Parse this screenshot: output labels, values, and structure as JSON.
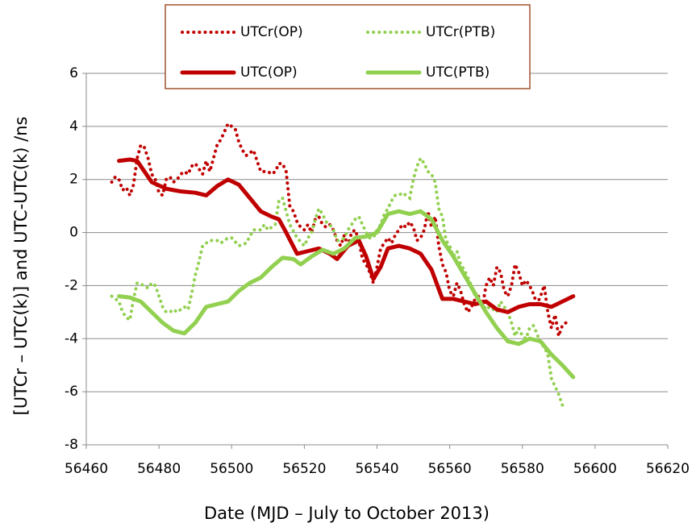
{
  "chart_data": {
    "type": "line",
    "x_label": "Date (MJD – July to October 2013)",
    "y_label": "[UTCr – UTC(k)] and UTC-UTC(k) /ns",
    "xlim": [
      56460,
      56620
    ],
    "xticks": [
      56460,
      56480,
      56500,
      56520,
      56540,
      56560,
      56580,
      56600,
      56620
    ],
    "ylim": [
      -8,
      6
    ],
    "yticks": [
      -8,
      -6,
      -4,
      -2,
      0,
      2,
      4,
      6
    ],
    "grid": true,
    "legend": "top",
    "series": [
      {
        "name": "UTCr(OP)",
        "color": "#c00000",
        "style": "dotted",
        "x": [
          56467,
          56468,
          56469,
          56470,
          56471,
          56472,
          56473,
          56474,
          56475,
          56476,
          56477,
          56478,
          56479,
          56480,
          56481,
          56482,
          56483,
          56484,
          56485,
          56486,
          56487,
          56488,
          56489,
          56490,
          56491,
          56492,
          56493,
          56494,
          56495,
          56496,
          56497,
          56498,
          56499,
          56500,
          56501,
          56502,
          56503,
          56504,
          56505,
          56506,
          56507,
          56508,
          56509,
          56510,
          56511,
          56512,
          56513,
          56514,
          56515,
          56516,
          56517,
          56518,
          56519,
          56520,
          56521,
          56522,
          56523,
          56524,
          56525,
          56526,
          56527,
          56528,
          56529,
          56530,
          56531,
          56532,
          56533,
          56534,
          56535,
          56536,
          56537,
          56538,
          56539,
          56540,
          56541,
          56542,
          56543,
          56544,
          56545,
          56546,
          56547,
          56548,
          56549,
          56550,
          56551,
          56552,
          56553,
          56554,
          56555,
          56556,
          56557,
          56558,
          56559,
          56560,
          56561,
          56562,
          56563,
          56564,
          56565,
          56566,
          56567,
          56568,
          56569,
          56570,
          56571,
          56572,
          56573,
          56574,
          56575,
          56576,
          56577,
          56578,
          56579,
          56580,
          56581,
          56582,
          56583,
          56584,
          56585,
          56586,
          56587,
          56588,
          56589,
          56590,
          56591,
          56592
        ],
        "values": [
          1.9,
          2.1,
          2.0,
          1.6,
          1.7,
          1.4,
          1.8,
          2.8,
          3.3,
          3.2,
          2.8,
          2.2,
          2.0,
          1.5,
          1.4,
          2.0,
          2.1,
          1.9,
          2.0,
          2.2,
          2.3,
          2.2,
          2.5,
          2.6,
          2.4,
          2.2,
          2.7,
          2.3,
          2.8,
          3.3,
          3.5,
          3.8,
          4.1,
          4.0,
          3.9,
          3.4,
          3.1,
          2.9,
          3.0,
          3.1,
          2.7,
          2.3,
          2.3,
          2.3,
          2.2,
          2.3,
          2.6,
          2.6,
          2.3,
          1.0,
          0.8,
          0.4,
          0.2,
          0.1,
          0.3,
          0.0,
          0.5,
          0.6,
          0.3,
          0.2,
          0.3,
          0.1,
          -0.3,
          -0.5,
          -0.1,
          -0.5,
          0.0,
          0.1,
          -0.3,
          -1.0,
          -1.2,
          -1.5,
          -1.9,
          -1.3,
          -0.6,
          -0.4,
          -0.2,
          -0.4,
          -0.1,
          0.1,
          0.3,
          0.2,
          0.4,
          0.2,
          -0.3,
          -0.2,
          0.1,
          0.8,
          0.2,
          0.6,
          -0.5,
          -1.2,
          -1.5,
          -2.2,
          -2.4,
          -1.9,
          -2.2,
          -2.7,
          -3.0,
          -2.8,
          -2.5,
          -2.4,
          -2.8,
          -2.0,
          -1.7,
          -2.0,
          -1.3,
          -1.5,
          -2.2,
          -2.4,
          -2.0,
          -1.2,
          -1.5,
          -2.0,
          -1.8,
          -2.0,
          -2.3,
          -2.7,
          -2.4,
          -2.0,
          -3.0,
          -3.6,
          -3.1,
          -3.9,
          -3.5,
          -3.4
        ]
      },
      {
        "name": "UTCr(PTB)",
        "color": "#92d050",
        "style": "dotted",
        "x": [
          56467,
          56469,
          56470,
          56471,
          56472,
          56473,
          56474,
          56476,
          56477,
          56478,
          56479,
          56480,
          56481,
          56482,
          56483,
          56484,
          56485,
          56486,
          56487,
          56488,
          56489,
          56490,
          56491,
          56492,
          56494,
          56496,
          56497,
          56498,
          56499,
          56500,
          56502,
          56504,
          56506,
          56508,
          56509,
          56510,
          56512,
          56513,
          56514,
          56515,
          56516,
          56518,
          56520,
          56521,
          56522,
          56523,
          56524,
          56525,
          56526,
          56527,
          56528,
          56529,
          56530,
          56531,
          56532,
          56533,
          56534,
          56535,
          56536,
          56537,
          56538,
          56539,
          56540,
          56541,
          56542,
          56543,
          56544,
          56545,
          56546,
          56547,
          56548,
          56549,
          56550,
          56551,
          56552,
          56553,
          56554,
          56555,
          56556,
          56557,
          56558,
          56559,
          56560,
          56561,
          56562,
          56563,
          56564,
          56565,
          56566,
          56567,
          56568,
          56569,
          56570,
          56571,
          56572,
          56573,
          56574,
          56575,
          56576,
          56577,
          56578,
          56579,
          56580,
          56581,
          56582,
          56583,
          56584,
          56585,
          56586,
          56587,
          56588,
          56589,
          56590,
          56591
        ],
        "values": [
          -2.4,
          -2.6,
          -3.0,
          -3.2,
          -3.3,
          -2.5,
          -1.9,
          -2.0,
          -2.1,
          -1.9,
          -2.0,
          -2.4,
          -2.8,
          -3.0,
          -3.0,
          -2.9,
          -3.0,
          -2.9,
          -2.8,
          -2.9,
          -2.3,
          -1.6,
          -1.1,
          -0.5,
          -0.3,
          -0.3,
          -0.4,
          -0.3,
          -0.2,
          -0.2,
          -0.5,
          -0.4,
          0.1,
          0.1,
          0.3,
          0.1,
          0.3,
          1.2,
          1.3,
          0.8,
          0.3,
          -0.2,
          -0.5,
          -0.2,
          0.0,
          0.5,
          0.9,
          0.7,
          0.4,
          0.3,
          0.1,
          -0.3,
          -0.3,
          -0.2,
          0.1,
          0.3,
          0.5,
          0.6,
          0.3,
          0.0,
          -0.2,
          -0.2,
          0.1,
          0.3,
          0.7,
          0.9,
          1.2,
          1.4,
          1.4,
          1.5,
          1.4,
          1.3,
          2.0,
          2.5,
          2.8,
          2.6,
          2.3,
          2.2,
          1.9,
          0.9,
          0.6,
          -0.3,
          -0.5,
          -0.9,
          -0.7,
          -1.2,
          -1.4,
          -1.7,
          -2.0,
          -2.4,
          -2.5,
          -2.7,
          -2.9,
          -2.8,
          -2.9,
          -3.0,
          -2.6,
          -2.8,
          -3.0,
          -3.4,
          -3.9,
          -3.6,
          -3.9,
          -4.0,
          -3.6,
          -3.5,
          -3.8,
          -4.2,
          -4.3,
          -4.6,
          -5.5,
          -5.8,
          -6.1,
          -6.5
        ]
      },
      {
        "name": "UTC(OP)",
        "color": "#c00000",
        "style": "solid",
        "x": [
          56469,
          56472,
          56474,
          56476,
          56478,
          56482,
          56486,
          56490,
          56493,
          56496,
          56499,
          56502,
          56505,
          56508,
          56511,
          56513,
          56515,
          56518,
          56521,
          56524,
          56527,
          56529,
          56532,
          56535,
          56537,
          56539,
          56541,
          56543,
          56546,
          56549,
          56552,
          56555,
          56558,
          56561,
          56564,
          56567,
          56570,
          56573,
          56576,
          56579,
          56582,
          56585,
          56588,
          56591,
          56594
        ],
        "values": [
          2.7,
          2.75,
          2.7,
          2.3,
          1.9,
          1.65,
          1.55,
          1.5,
          1.4,
          1.75,
          2.0,
          1.8,
          1.3,
          0.8,
          0.6,
          0.5,
          0.0,
          -0.8,
          -0.7,
          -0.6,
          -0.8,
          -1.0,
          -0.5,
          -0.3,
          -0.9,
          -1.75,
          -1.3,
          -0.6,
          -0.5,
          -0.6,
          -0.8,
          -1.4,
          -2.5,
          -2.5,
          -2.6,
          -2.7,
          -2.6,
          -2.9,
          -3.0,
          -2.8,
          -2.7,
          -2.7,
          -2.8,
          -2.6,
          -2.4
        ]
      },
      {
        "name": "UTC(PTB)",
        "color": "#92d050",
        "style": "solid",
        "x": [
          56469,
          56472,
          56475,
          56478,
          56481,
          56484,
          56487,
          56490,
          56493,
          56496,
          56499,
          56502,
          56505,
          56508,
          56511,
          56514,
          56517,
          56519,
          56522,
          56525,
          56528,
          56531,
          56534,
          56537,
          56540,
          56543,
          56546,
          56549,
          56552,
          56555,
          56558,
          56561,
          56564,
          56567,
          56570,
          56573,
          56576,
          56579,
          56582,
          56585,
          56588,
          56591,
          56594
        ],
        "values": [
          -2.4,
          -2.45,
          -2.6,
          -3.0,
          -3.4,
          -3.7,
          -3.8,
          -3.4,
          -2.8,
          -2.7,
          -2.6,
          -2.2,
          -1.9,
          -1.7,
          -1.3,
          -0.95,
          -1.0,
          -1.2,
          -0.9,
          -0.65,
          -0.8,
          -0.6,
          -0.2,
          -0.15,
          0.0,
          0.7,
          0.8,
          0.7,
          0.8,
          0.5,
          -0.3,
          -0.9,
          -1.6,
          -2.3,
          -3.0,
          -3.6,
          -4.1,
          -4.2,
          -4.0,
          -4.1,
          -4.6,
          -5.0,
          -5.45
        ]
      }
    ]
  }
}
